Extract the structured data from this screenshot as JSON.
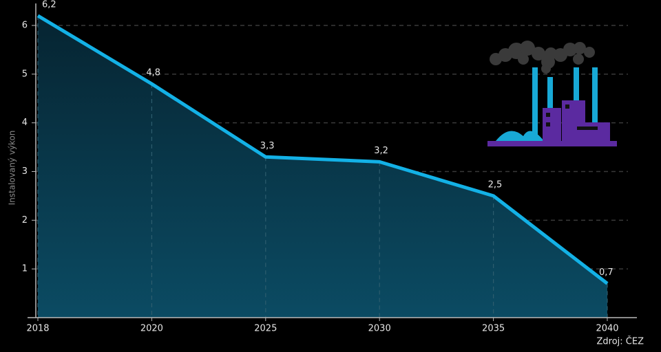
{
  "chart_data": {
    "type": "line",
    "y_label": "Instalovaný výkon",
    "source": "Zdroj: ČEZ",
    "categories": [
      "2018",
      "2020",
      "2025",
      "2030",
      "2035",
      "2040"
    ],
    "values": [
      6.2,
      4.8,
      3.3,
      3.2,
      2.5,
      0.7
    ],
    "value_labels": [
      "6,2",
      "4,8",
      "3,3",
      "3,2",
      "2,5",
      "0,7"
    ],
    "color": "#13b1e6",
    "ylim": [
      0,
      6
    ],
    "yticks": [
      1,
      2,
      3,
      4,
      5,
      6
    ],
    "grid": true
  }
}
